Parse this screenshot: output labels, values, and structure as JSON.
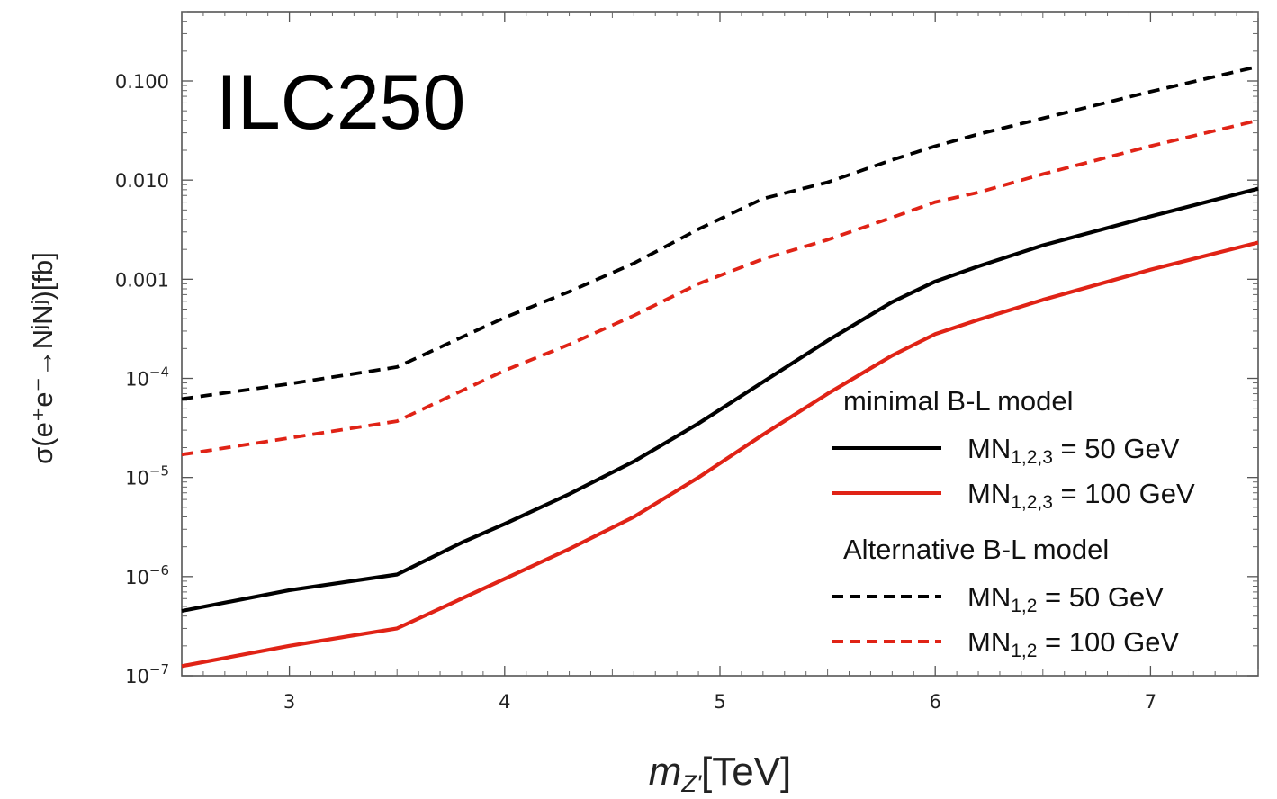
{
  "chart_data": {
    "type": "line",
    "title": "ILC250",
    "xlabel": "m_Z'[TeV]",
    "xlabel_main": "m",
    "xlabel_sub": "Z'",
    "xlabel_unit": "[TeV]",
    "ylabel": "σ(e⁺e⁻→NʲNʲ)[fb]",
    "xlim": [
      2.5,
      7.5
    ],
    "ylim": [
      1e-07,
      0.5
    ],
    "yscale": "log",
    "grid": false,
    "legend_position": "bottom-right",
    "x_ticks": [
      3,
      4,
      5,
      6,
      7
    ],
    "x_tick_labels": [
      "3",
      "4",
      "5",
      "6",
      "7"
    ],
    "y_ticks": [
      1e-07,
      1e-06,
      1e-05,
      0.0001,
      0.001,
      0.01,
      0.1
    ],
    "y_tick_labels": [
      {
        "base": "10",
        "exp": "−7"
      },
      {
        "base": "10",
        "exp": "−6"
      },
      {
        "base": "10",
        "exp": "−5"
      },
      {
        "base": "10",
        "exp": "−4"
      },
      {
        "base": "0.001",
        "exp": ""
      },
      {
        "base": "0.010",
        "exp": ""
      },
      {
        "base": "0.100",
        "exp": ""
      }
    ],
    "legend_groups": [
      {
        "header": "minimal B-L model",
        "series": [
          0,
          1
        ]
      },
      {
        "header": "Alternative B-L model",
        "series": [
          2,
          3
        ]
      }
    ],
    "series": [
      {
        "name": "MN1,2,3 = 50 GeV",
        "name_main": "MN",
        "name_sub": "1,2,3",
        "name_rest": " = 50 GeV",
        "color": "#000000",
        "dash": "solid",
        "x": [
          2.5,
          3.0,
          3.5,
          3.8,
          4.0,
          4.3,
          4.6,
          4.9,
          5.2,
          5.5,
          5.8,
          6.0,
          6.2,
          6.5,
          7.0,
          7.5
        ],
        "y": [
          4.5e-07,
          7.3e-07,
          1.05e-06,
          2.2e-06,
          3.4e-06,
          6.8e-06,
          1.45e-05,
          3.5e-05,
          9.2e-05,
          0.00024,
          0.00059,
          0.00095,
          0.00135,
          0.0022,
          0.0043,
          0.0082
        ]
      },
      {
        "name": "MN1,2,3 = 100 GeV",
        "name_main": "MN",
        "name_sub": "1,2,3",
        "name_rest": " = 100 GeV",
        "color": "#e02316",
        "dash": "solid",
        "x": [
          2.5,
          3.0,
          3.5,
          3.8,
          4.0,
          4.3,
          4.6,
          4.9,
          5.2,
          5.5,
          5.8,
          6.0,
          6.2,
          6.5,
          7.0,
          7.5
        ],
        "y": [
          1.25e-07,
          2e-07,
          3e-07,
          6e-07,
          9.5e-07,
          1.9e-06,
          4e-06,
          1e-05,
          2.7e-05,
          7e-05,
          0.00017,
          0.00028,
          0.00039,
          0.00062,
          0.00125,
          0.00235
        ]
      },
      {
        "name": "MN1,2 = 50 GeV",
        "name_main": "MN",
        "name_sub": "1,2",
        "name_rest": " = 50 GeV",
        "color": "#000000",
        "dash": "dashed",
        "x": [
          2.5,
          3.0,
          3.5,
          3.8,
          4.0,
          4.3,
          4.6,
          4.9,
          5.2,
          5.5,
          5.8,
          6.0,
          6.2,
          6.5,
          7.0,
          7.5
        ],
        "y": [
          6.2e-05,
          8.8e-05,
          0.00013,
          0.00026,
          0.00041,
          0.00075,
          0.00145,
          0.0032,
          0.0065,
          0.0095,
          0.016,
          0.022,
          0.029,
          0.042,
          0.078,
          0.14
        ]
      },
      {
        "name": "MN1,2 = 100 GeV",
        "name_main": "MN",
        "name_sub": "1,2",
        "name_rest": " = 100 GeV",
        "color": "#e02316",
        "dash": "dashed",
        "x": [
          2.5,
          3.0,
          3.5,
          3.8,
          4.0,
          4.3,
          4.6,
          4.9,
          5.2,
          5.5,
          5.8,
          6.0,
          6.2,
          6.5,
          7.0,
          7.5
        ],
        "y": [
          1.7e-05,
          2.5e-05,
          3.7e-05,
          7.5e-05,
          0.00012,
          0.00022,
          0.00043,
          0.0009,
          0.0016,
          0.0025,
          0.0042,
          0.006,
          0.0075,
          0.0115,
          0.022,
          0.04
        ]
      }
    ]
  }
}
